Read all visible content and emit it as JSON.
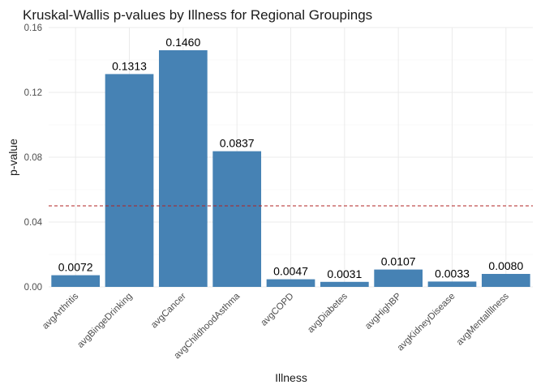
{
  "chart_data": {
    "type": "bar",
    "title": "Kruskal-Wallis p-values by Illness for Regional Groupings",
    "xlabel": "Illness",
    "ylabel": "p-value",
    "categories": [
      "avgArthritis",
      "avgBingeDrinking",
      "avgCancer",
      "avgChildhoodAsthma",
      "avgCOPD",
      "avgDiabetes",
      "avgHighBP",
      "avgKidneyDisease",
      "avgMentalIllness"
    ],
    "values": [
      0.0072,
      0.1313,
      0.146,
      0.0837,
      0.0047,
      0.0031,
      0.0107,
      0.0033,
      0.008
    ],
    "data_labels": [
      "0.0072",
      "0.1313",
      "0.1460",
      "0.0837",
      "0.0047",
      "0.0031",
      "0.0107",
      "0.0033",
      "0.0080"
    ],
    "ylim": [
      0,
      0.16
    ],
    "yticks": [
      0.0,
      0.04,
      0.08,
      0.12,
      0.16
    ],
    "ytick_labels": [
      "0.00",
      "0.04",
      "0.08",
      "0.12",
      "0.16"
    ],
    "reference_line": {
      "value": 0.05,
      "style": "dashed",
      "color": "#b22222"
    },
    "bar_color": "#4682b4",
    "grid": true,
    "legend": "none"
  }
}
